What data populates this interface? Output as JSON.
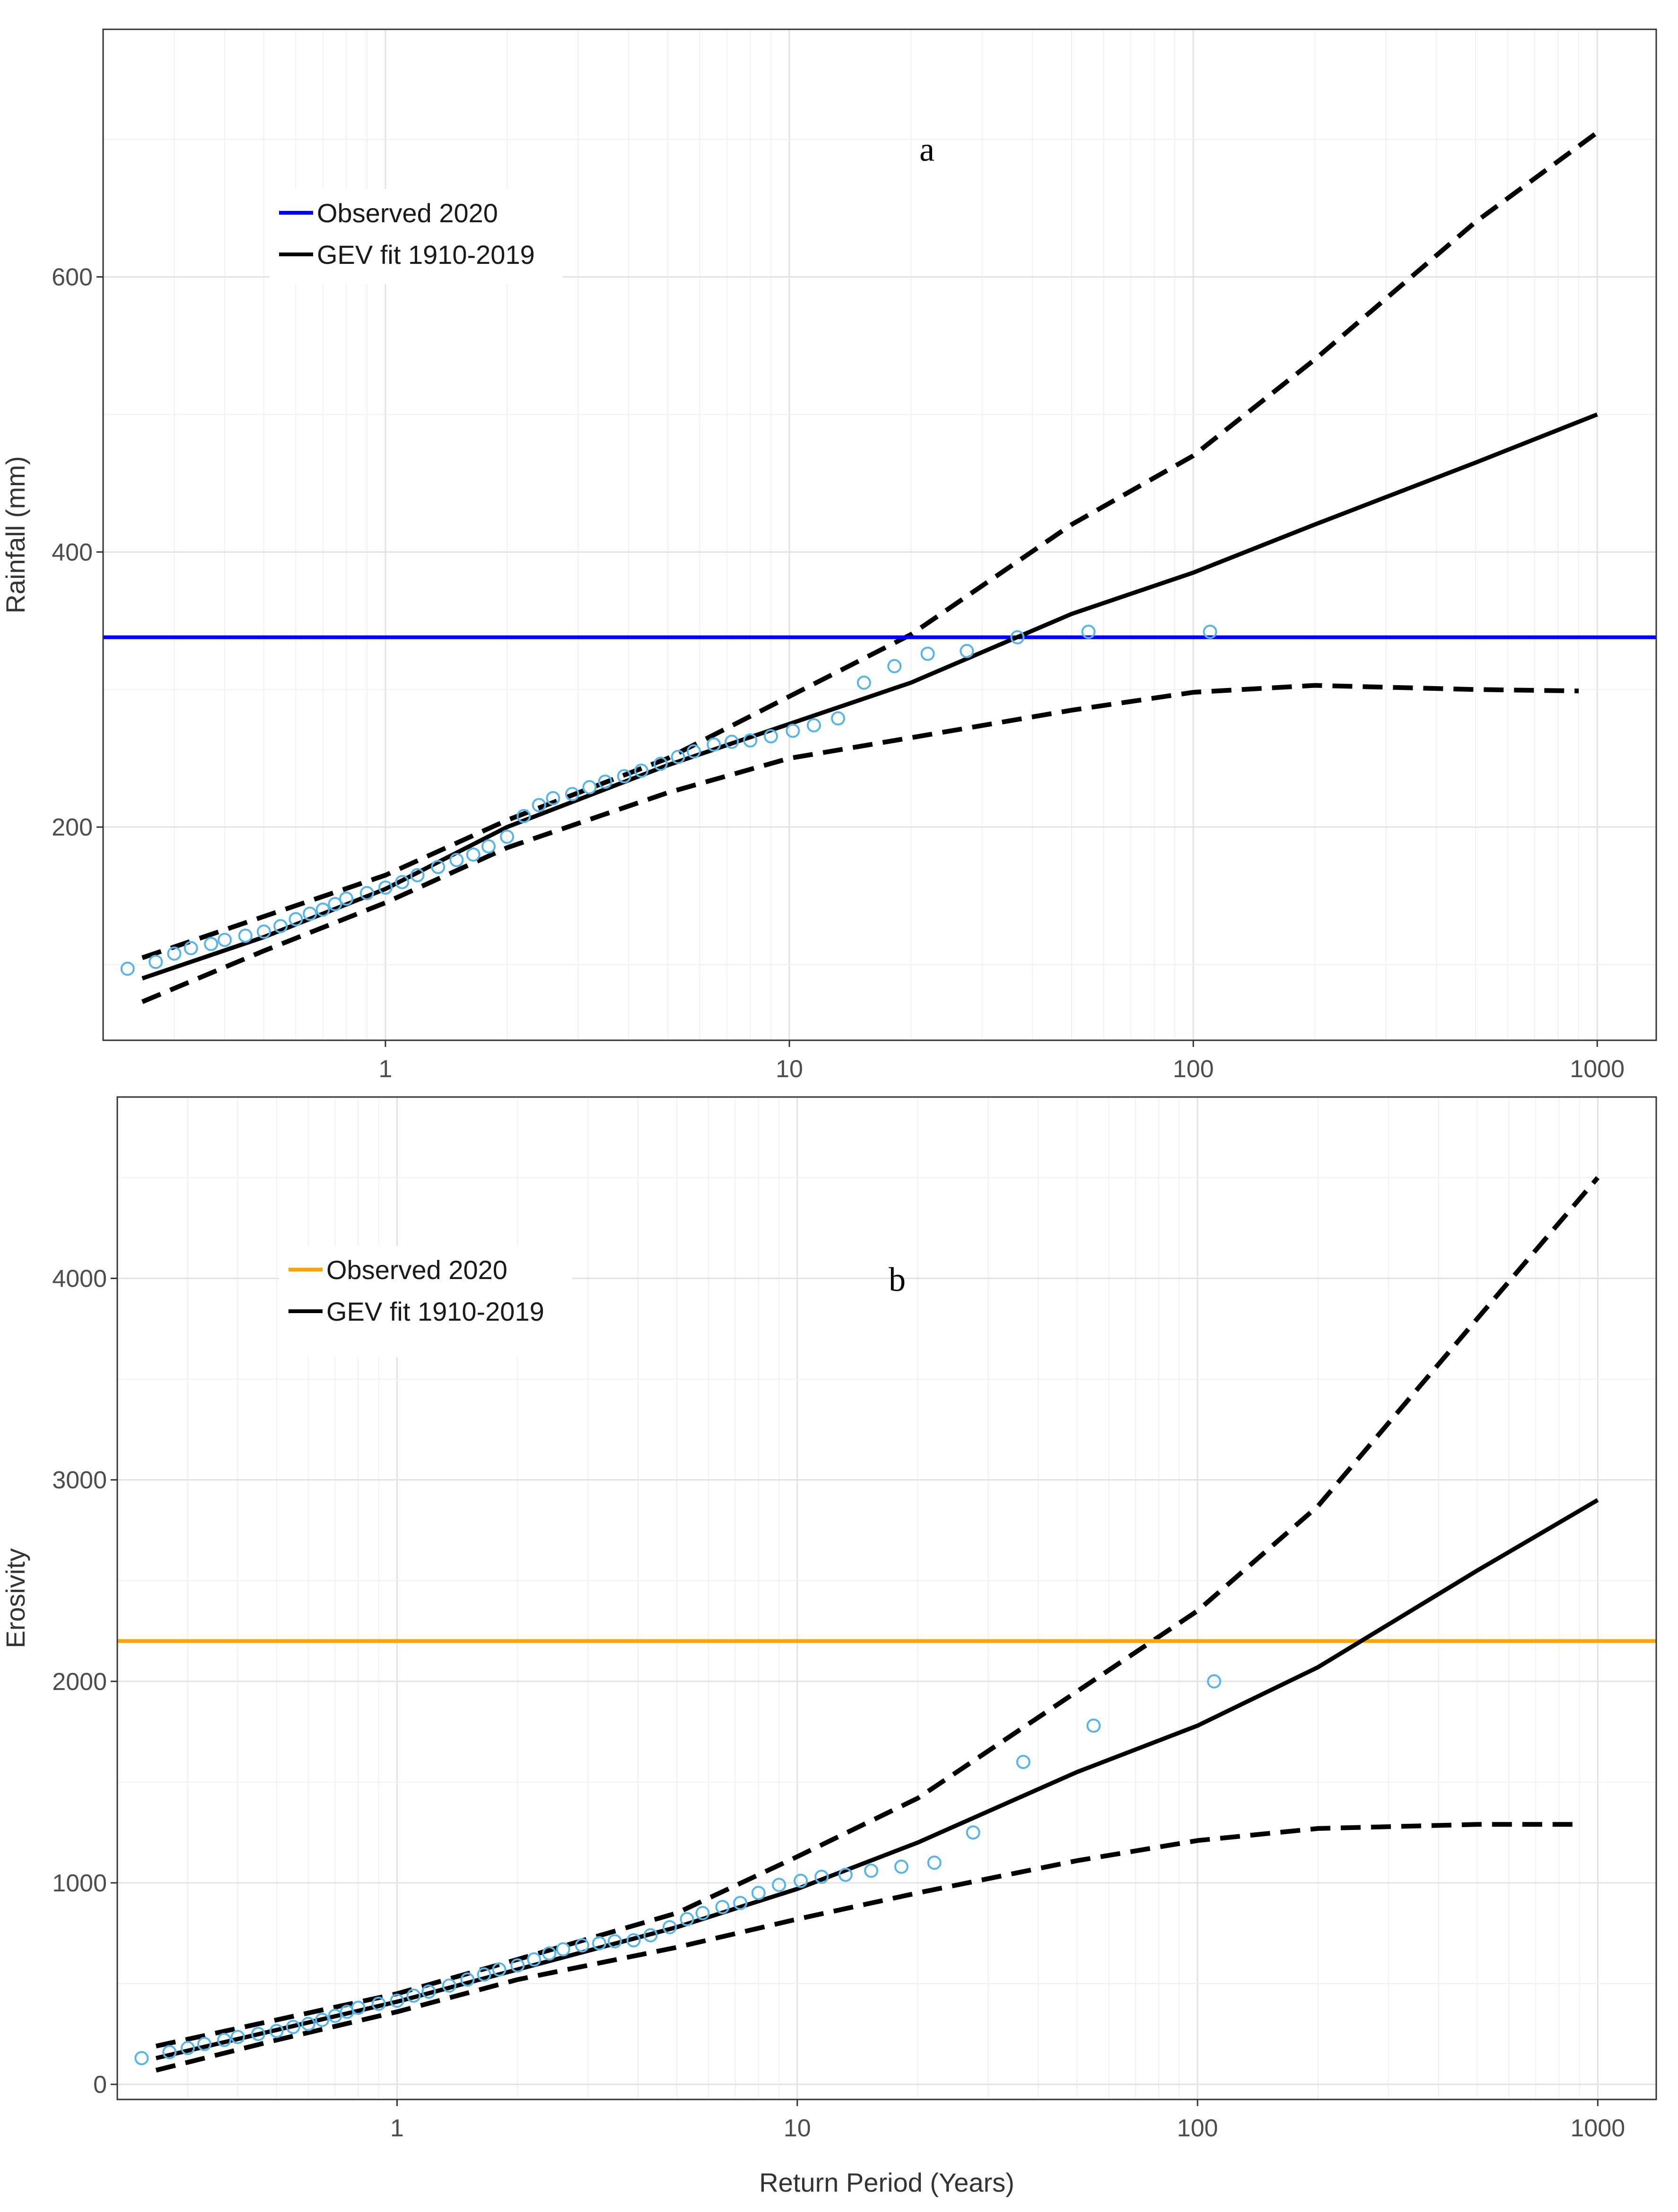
{
  "chart_data": [
    {
      "type": "line",
      "panel_label": "a",
      "xscale": "log10",
      "xlim": [
        0.2,
        1400
      ],
      "ylim": [
        45,
        780
      ],
      "x_ticks": [
        1,
        10,
        100,
        1000
      ],
      "x_tick_labels": [
        "1",
        "10",
        "100",
        "1000"
      ],
      "y_ticks": [
        200,
        400,
        600
      ],
      "y_tick_labels": [
        "200",
        "400",
        "600"
      ],
      "xlabel": "",
      "ylabel": "Rainfall (mm)",
      "legend": {
        "position": "top-left",
        "entries": [
          {
            "label": "Observed 2020",
            "color": "#0000ff"
          },
          {
            "label": "GEV fit 1910-2019",
            "color": "#000000"
          }
        ]
      },
      "observed_2020": {
        "value": 338,
        "color": "#0000ff"
      },
      "fit": {
        "x": [
          0.25,
          0.5,
          1,
          2,
          5,
          10,
          20,
          50,
          100,
          200,
          500,
          1000
        ],
        "y": [
          90,
          120,
          155,
          200,
          245,
          275,
          305,
          355,
          385,
          420,
          465,
          500
        ]
      },
      "upper_ci": {
        "x": [
          0.25,
          0.5,
          1,
          2,
          5,
          10,
          20,
          50,
          100,
          200,
          500,
          1000
        ],
        "y": [
          105,
          135,
          165,
          205,
          250,
          295,
          340,
          420,
          470,
          540,
          640,
          705
        ]
      },
      "lower_ci": {
        "x": [
          0.25,
          0.5,
          1,
          2,
          5,
          10,
          20,
          50,
          100,
          200,
          500,
          900
        ],
        "y": [
          73,
          110,
          145,
          185,
          225,
          250,
          265,
          285,
          298,
          303,
          300,
          299
        ]
      },
      "points": {
        "color": "#56b4e9",
        "x": [
          0.23,
          0.27,
          0.3,
          0.33,
          0.37,
          0.4,
          0.45,
          0.5,
          0.55,
          0.6,
          0.65,
          0.7,
          0.75,
          0.8,
          0.9,
          1.0,
          1.1,
          1.2,
          1.35,
          1.5,
          1.65,
          1.8,
          2.0,
          2.2,
          2.4,
          2.6,
          2.9,
          3.2,
          3.5,
          3.9,
          4.3,
          4.8,
          5.3,
          5.8,
          6.5,
          7.2,
          8.0,
          9.0,
          10.2,
          11.5,
          13.2,
          15.3,
          18.2,
          22.0,
          27.5,
          36.7,
          55.0,
          110.0
        ],
        "y": [
          97,
          102,
          108,
          112,
          115,
          118,
          121,
          124,
          128,
          133,
          137,
          140,
          144,
          148,
          152,
          156,
          160,
          165,
          171,
          176,
          180,
          186,
          193,
          208,
          216,
          221,
          224,
          229,
          233,
          237,
          241,
          246,
          251,
          255,
          260,
          262,
          263,
          266,
          270,
          274,
          279,
          305,
          317,
          326,
          328,
          338,
          342,
          342
        ]
      }
    },
    {
      "type": "line",
      "panel_label": "b",
      "xscale": "log10",
      "xlim": [
        0.2,
        1400
      ],
      "ylim": [
        -75,
        4900
      ],
      "x_ticks": [
        1,
        10,
        100,
        1000
      ],
      "x_tick_labels": [
        "1",
        "10",
        "100",
        "1000"
      ],
      "y_ticks": [
        0,
        1000,
        2000,
        3000,
        4000
      ],
      "y_tick_labels": [
        "0",
        "1000",
        "2000",
        "3000",
        "4000"
      ],
      "xlabel": "Return Period (Years)",
      "ylabel": "Erosivity",
      "legend": {
        "position": "top-left",
        "entries": [
          {
            "label": "Observed 2020",
            "color": "#ffa500"
          },
          {
            "label": "GEV fit 1910-2019",
            "color": "#000000"
          }
        ]
      },
      "observed_2020": {
        "value": 2200,
        "color": "#ffa500"
      },
      "fit": {
        "x": [
          0.25,
          0.5,
          1,
          2,
          5,
          10,
          20,
          50,
          100,
          200,
          500,
          1000
        ],
        "y": [
          130,
          270,
          410,
          570,
          780,
          970,
          1200,
          1550,
          1780,
          2070,
          2550,
          2900
        ]
      },
      "upper_ci": {
        "x": [
          0.25,
          0.5,
          1,
          2,
          5,
          10,
          20,
          50,
          100,
          200,
          500,
          1000
        ],
        "y": [
          190,
          320,
          450,
          620,
          850,
          1130,
          1420,
          1950,
          2350,
          2870,
          3800,
          4500
        ]
      },
      "lower_ci": {
        "x": [
          0.25,
          0.5,
          1,
          2,
          5,
          10,
          20,
          50,
          100,
          200,
          500,
          900
        ],
        "y": [
          70,
          220,
          360,
          520,
          680,
          820,
          950,
          1110,
          1210,
          1270,
          1290,
          1290
        ]
      },
      "points": {
        "color": "#56b4e9",
        "x": [
          0.23,
          0.27,
          0.3,
          0.33,
          0.37,
          0.4,
          0.45,
          0.5,
          0.55,
          0.6,
          0.65,
          0.7,
          0.75,
          0.8,
          0.9,
          1.0,
          1.1,
          1.2,
          1.35,
          1.5,
          1.65,
          1.8,
          2.0,
          2.2,
          2.4,
          2.6,
          2.9,
          3.2,
          3.5,
          3.9,
          4.3,
          4.8,
          5.3,
          5.8,
          6.5,
          7.2,
          8.0,
          9.0,
          10.2,
          11.5,
          13.2,
          15.3,
          18.2,
          22.0,
          27.5,
          36.7,
          55.0,
          110.0
        ],
        "y": [
          130,
          160,
          180,
          200,
          220,
          235,
          250,
          265,
          285,
          300,
          320,
          340,
          360,
          380,
          400,
          415,
          440,
          460,
          490,
          520,
          545,
          570,
          590,
          620,
          650,
          670,
          690,
          700,
          710,
          715,
          740,
          780,
          820,
          850,
          880,
          900,
          950,
          990,
          1010,
          1030,
          1040,
          1060,
          1080,
          1100,
          1250,
          1600,
          1780,
          2000
        ]
      }
    }
  ]
}
